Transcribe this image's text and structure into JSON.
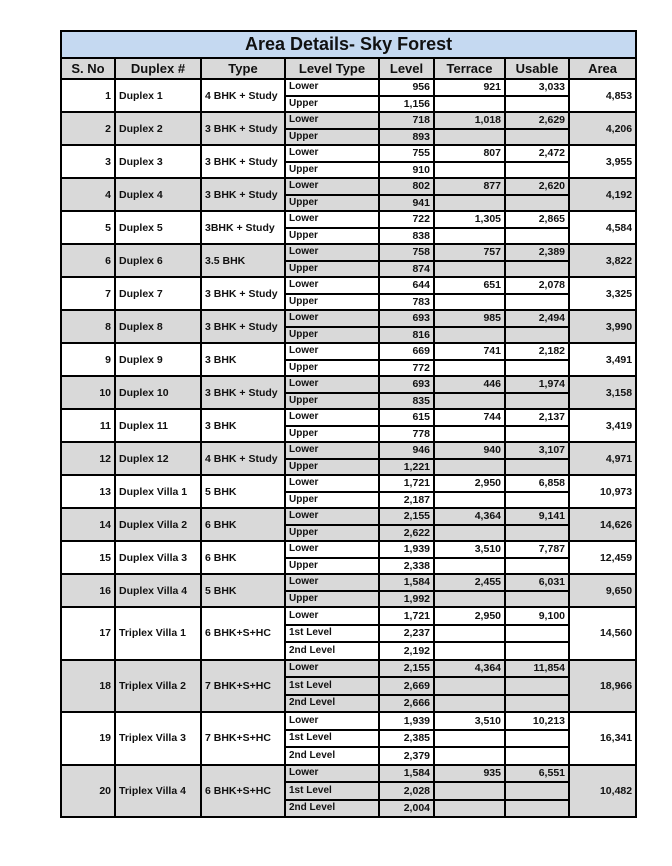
{
  "table": {
    "title": "Area Details- Sky Forest",
    "headers": [
      "S. No",
      "Duplex #",
      "Type",
      "Level Type",
      "Level",
      "Terrace",
      "Usable",
      "Area"
    ],
    "rows": [
      {
        "sno": "1",
        "name": "Duplex 1",
        "type": "4 BHK + Study",
        "levels": [
          {
            "lt": "Lower",
            "level": "956"
          },
          {
            "lt": "Upper",
            "level": "1,156"
          }
        ],
        "terrace": "921",
        "usable": "3,033",
        "area": "4,853"
      },
      {
        "sno": "2",
        "name": "Duplex 2",
        "type": "3 BHK + Study",
        "levels": [
          {
            "lt": "Lower",
            "level": "718"
          },
          {
            "lt": "Upper",
            "level": "893"
          }
        ],
        "terrace": "1,018",
        "usable": "2,629",
        "area": "4,206"
      },
      {
        "sno": "3",
        "name": "Duplex 3",
        "type": "3 BHK + Study",
        "levels": [
          {
            "lt": "Lower",
            "level": "755"
          },
          {
            "lt": "Upper",
            "level": "910"
          }
        ],
        "terrace": "807",
        "usable": "2,472",
        "area": "3,955"
      },
      {
        "sno": "4",
        "name": "Duplex 4",
        "type": "3 BHK + Study",
        "levels": [
          {
            "lt": "Lower",
            "level": "802"
          },
          {
            "lt": "Upper",
            "level": "941"
          }
        ],
        "terrace": "877",
        "usable": "2,620",
        "area": "4,192"
      },
      {
        "sno": "5",
        "name": "Duplex 5",
        "type": "3BHK + Study",
        "levels": [
          {
            "lt": "Lower",
            "level": "722"
          },
          {
            "lt": "Upper",
            "level": "838"
          }
        ],
        "terrace": "1,305",
        "usable": "2,865",
        "area": "4,584"
      },
      {
        "sno": "6",
        "name": "Duplex 6",
        "type": "3.5 BHK",
        "levels": [
          {
            "lt": "Lower",
            "level": "758"
          },
          {
            "lt": "Upper",
            "level": "874"
          }
        ],
        "terrace": "757",
        "usable": "2,389",
        "area": "3,822"
      },
      {
        "sno": "7",
        "name": "Duplex 7",
        "type": "3 BHK + Study",
        "levels": [
          {
            "lt": "Lower",
            "level": "644"
          },
          {
            "lt": "Upper",
            "level": "783"
          }
        ],
        "terrace": "651",
        "usable": "2,078",
        "area": "3,325"
      },
      {
        "sno": "8",
        "name": "Duplex 8",
        "type": "3 BHK + Study",
        "levels": [
          {
            "lt": "Lower",
            "level": "693"
          },
          {
            "lt": "Upper",
            "level": "816"
          }
        ],
        "terrace": "985",
        "usable": "2,494",
        "area": "3,990"
      },
      {
        "sno": "9",
        "name": "Duplex 9",
        "type": "3 BHK",
        "levels": [
          {
            "lt": "Lower",
            "level": "669"
          },
          {
            "lt": "Upper",
            "level": "772"
          }
        ],
        "terrace": "741",
        "usable": "2,182",
        "area": "3,491"
      },
      {
        "sno": "10",
        "name": "Duplex 10",
        "type": "3 BHK + Study",
        "levels": [
          {
            "lt": "Lower",
            "level": "693"
          },
          {
            "lt": "Upper",
            "level": "835"
          }
        ],
        "terrace": "446",
        "usable": "1,974",
        "area": "3,158"
      },
      {
        "sno": "11",
        "name": "Duplex 11",
        "type": "3 BHK",
        "levels": [
          {
            "lt": "Lower",
            "level": "615"
          },
          {
            "lt": "Upper",
            "level": "778"
          }
        ],
        "terrace": "744",
        "usable": "2,137",
        "area": "3,419"
      },
      {
        "sno": "12",
        "name": "Duplex 12",
        "type": "4 BHK + Study",
        "levels": [
          {
            "lt": "Lower",
            "level": "946"
          },
          {
            "lt": "Upper",
            "level": "1,221"
          }
        ],
        "terrace": "940",
        "usable": "3,107",
        "area": "4,971"
      },
      {
        "sno": "13",
        "name": "Duplex Villa 1",
        "type": "5 BHK",
        "levels": [
          {
            "lt": "Lower",
            "level": "1,721"
          },
          {
            "lt": "Upper",
            "level": "2,187"
          }
        ],
        "terrace": "2,950",
        "usable": "6,858",
        "area": "10,973"
      },
      {
        "sno": "14",
        "name": "Duplex Villa 2",
        "type": "6 BHK",
        "levels": [
          {
            "lt": "Lower",
            "level": "2,155"
          },
          {
            "lt": "Upper",
            "level": "2,622"
          }
        ],
        "terrace": "4,364",
        "usable": "9,141",
        "area": "14,626"
      },
      {
        "sno": "15",
        "name": "Duplex Villa 3",
        "type": "6 BHK",
        "levels": [
          {
            "lt": "Lower",
            "level": "1,939"
          },
          {
            "lt": "Upper",
            "level": "2,338"
          }
        ],
        "terrace": "3,510",
        "usable": "7,787",
        "area": "12,459"
      },
      {
        "sno": "16",
        "name": "Duplex Villa 4",
        "type": "5 BHK",
        "levels": [
          {
            "lt": "Lower",
            "level": "1,584"
          },
          {
            "lt": "Upper",
            "level": "1,992"
          }
        ],
        "terrace": "2,455",
        "usable": "6,031",
        "area": "9,650"
      },
      {
        "sno": "17",
        "name": "Triplex Villa 1",
        "type": "6 BHK+S+HC",
        "levels": [
          {
            "lt": "Lower",
            "level": "1,721"
          },
          {
            "lt": "1st Level",
            "level": "2,237"
          },
          {
            "lt": "2nd Level",
            "level": "2,192"
          }
        ],
        "terrace": "2,950",
        "usable": "9,100",
        "area": "14,560"
      },
      {
        "sno": "18",
        "name": "Triplex Villa 2",
        "type": "7 BHK+S+HC",
        "levels": [
          {
            "lt": "Lower",
            "level": "2,155"
          },
          {
            "lt": "1st Level",
            "level": "2,669"
          },
          {
            "lt": "2nd Level",
            "level": "2,666"
          }
        ],
        "terrace": "4,364",
        "usable": "11,854",
        "area": "18,966"
      },
      {
        "sno": "19",
        "name": "Triplex Villa 3",
        "type": "7 BHK+S+HC",
        "levels": [
          {
            "lt": "Lower",
            "level": "1,939"
          },
          {
            "lt": "1st Level",
            "level": "2,385"
          },
          {
            "lt": "2nd Level",
            "level": "2,379"
          }
        ],
        "terrace": "3,510",
        "usable": "10,213",
        "area": "16,341"
      },
      {
        "sno": "20",
        "name": "Triplex Villa 4",
        "type": "6 BHK+S+HC",
        "levels": [
          {
            "lt": "Lower",
            "level": "1,584"
          },
          {
            "lt": "1st Level",
            "level": "2,028"
          },
          {
            "lt": "2nd Level",
            "level": "2,004"
          }
        ],
        "terrace": "935",
        "usable": "6,551",
        "area": "10,482"
      }
    ]
  },
  "colors": {
    "title_bg": "#c5d9f1",
    "alt_row_bg": "#d9d9d9",
    "border": "#000000"
  }
}
